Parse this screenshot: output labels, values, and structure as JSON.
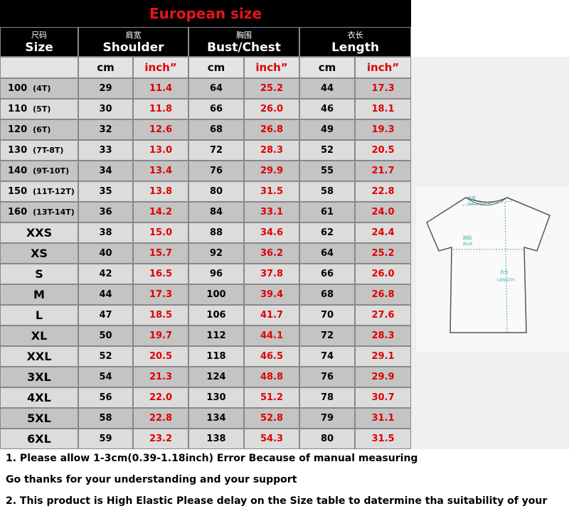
{
  "title": "European size",
  "header": [
    {
      "zh": "尺码",
      "en": "Size"
    },
    {
      "zh": "肩宽",
      "en": "Shoulder"
    },
    {
      "zh": "胸围",
      "en": "Bust/Chest"
    },
    {
      "zh": "衣长",
      "en": "Length"
    }
  ],
  "units": [
    "cm",
    "inch”",
    "cm",
    "inch”",
    "cm",
    "inch”"
  ],
  "rows": [
    {
      "size": "100",
      "age": "(4T)",
      "cells": [
        "29",
        "11.4",
        "64",
        "25.2",
        "44",
        "17.3"
      ]
    },
    {
      "size": "110",
      "age": "(5T)",
      "cells": [
        "30",
        "11.8",
        "66",
        "26.0",
        "46",
        "18.1"
      ]
    },
    {
      "size": "120",
      "age": "(6T)",
      "cells": [
        "32",
        "12.6",
        "68",
        "26.8",
        "49",
        "19.3"
      ]
    },
    {
      "size": "130",
      "age": "(7T-8T)",
      "cells": [
        "33",
        "13.0",
        "72",
        "28.3",
        "52",
        "20.5"
      ]
    },
    {
      "size": "140",
      "age": "(9T-10T)",
      "cells": [
        "34",
        "13.4",
        "76",
        "29.9",
        "55",
        "21.7"
      ]
    },
    {
      "size": "150",
      "age": "(11T-12T)",
      "cells": [
        "35",
        "13.8",
        "80",
        "31.5",
        "58",
        "22.8"
      ]
    },
    {
      "size": "160",
      "age": "(13T-14T)",
      "cells": [
        "36",
        "14.2",
        "84",
        "33.1",
        "61",
        "24.0"
      ]
    },
    {
      "size": "XXS",
      "cells": [
        "38",
        "15.0",
        "88",
        "34.6",
        "62",
        "24.4"
      ]
    },
    {
      "size": "XS",
      "cells": [
        "40",
        "15.7",
        "92",
        "36.2",
        "64",
        "25.2"
      ]
    },
    {
      "size": "S",
      "cells": [
        "42",
        "16.5",
        "96",
        "37.8",
        "66",
        "26.0"
      ]
    },
    {
      "size": "M",
      "cells": [
        "44",
        "17.3",
        "100",
        "39.4",
        "68",
        "26.8"
      ]
    },
    {
      "size": "L",
      "cells": [
        "47",
        "18.5",
        "106",
        "41.7",
        "70",
        "27.6"
      ]
    },
    {
      "size": "XL",
      "cells": [
        "50",
        "19.7",
        "112",
        "44.1",
        "72",
        "28.3"
      ]
    },
    {
      "size": "XXL",
      "cells": [
        "52",
        "20.5",
        "118",
        "46.5",
        "74",
        "29.1"
      ]
    },
    {
      "size": "3XL",
      "cells": [
        "54",
        "21.3",
        "124",
        "48.8",
        "76",
        "29.9"
      ]
    },
    {
      "size": "4XL",
      "cells": [
        "56",
        "22.0",
        "130",
        "51.2",
        "78",
        "30.7"
      ]
    },
    {
      "size": "5XL",
      "cells": [
        "58",
        "22.8",
        "134",
        "52.8",
        "79",
        "31.1"
      ]
    },
    {
      "size": "6XL",
      "cells": [
        "59",
        "23.2",
        "138",
        "54.3",
        "80",
        "31.5"
      ]
    }
  ],
  "diagram": {
    "shoulder_zh": "肩宽",
    "shoulder_en": "SHOULDER",
    "bust_zh": "胸围",
    "bust_en": "Bust",
    "length_zh": "衣长",
    "length_en": "LENGTH"
  },
  "notes": [
    "1. Please allow 1-3cm(0.39-1.18inch) Error Because of manual measuring",
    "Go thanks for your understanding and your support",
    "2. This product is High Elastic  Please delay on the Size table to datermine tha suitability of your"
  ]
}
